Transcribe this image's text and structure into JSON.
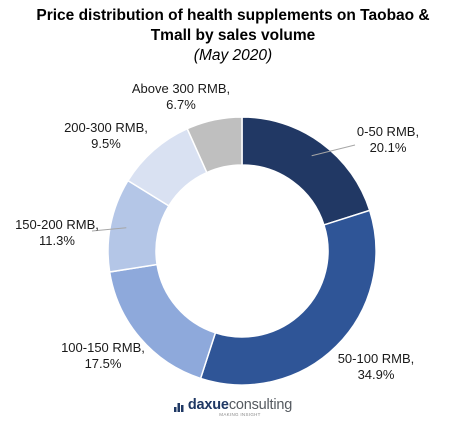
{
  "chart_data": {
    "type": "pie",
    "title": "Price distribution of health supplements on Taobao & Tmall by sales volume",
    "title_lines": [
      "Price distribution of health supplements on Taobao &",
      "Tmall by sales volume"
    ],
    "subtitle": "(May 2020)",
    "donut": true,
    "slices": [
      {
        "label": "0-50 RMB",
        "value": 20.1,
        "display": "20.1%",
        "color": "#213864"
      },
      {
        "label": "50-100 RMB",
        "value": 34.9,
        "display": "34.9%",
        "color": "#2f5597"
      },
      {
        "label": "100-150 RMB",
        "value": 17.5,
        "display": "17.5%",
        "color": "#8ea9db"
      },
      {
        "label": "150-200 RMB",
        "value": 11.3,
        "display": "11.3%",
        "color": "#b4c6e7"
      },
      {
        "label": "200-300 RMB",
        "value": 9.5,
        "display": "9.5%",
        "color": "#d9e1f2"
      },
      {
        "label": "Above 300 RMB",
        "value": 6.7,
        "display": "6.7%",
        "color": "#bfbfbf"
      }
    ],
    "legend": "none"
  },
  "brand": {
    "name_part1": "daxue",
    "name_part2": "consulting",
    "tagline": "MAKING INSIGHT",
    "color": "#1f3864"
  }
}
